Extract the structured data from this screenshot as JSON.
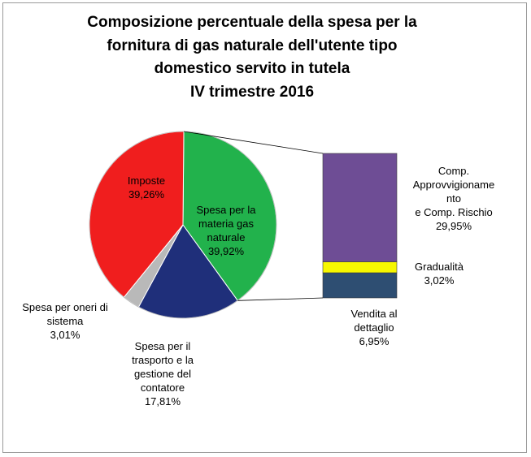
{
  "chart_data": {
    "type": "pie",
    "title": [
      "Composizione percentuale della spesa per la",
      "fornitura di gas naturale dell'utente tipo",
      "domestico servito in tutela",
      "IV trimestre 2016"
    ],
    "pie": {
      "slices": [
        {
          "key": "materia",
          "label_lines": [
            "Spesa per la",
            "materia gas",
            "naturale",
            "39,92%"
          ],
          "value": 39.92,
          "color": "#22b24c"
        },
        {
          "key": "trasporto",
          "label_lines": [
            "Spesa per il",
            "trasporto e la",
            "gestione del",
            "contatore",
            "17,81%"
          ],
          "value": 17.81,
          "color": "#1f2f7a"
        },
        {
          "key": "oneri",
          "label_lines": [
            "Spesa per oneri di",
            "sistema",
            "3,01%"
          ],
          "value": 3.01,
          "color": "#b9b9b9"
        },
        {
          "key": "imposte",
          "label_lines": [
            "Imposte",
            "39,26%"
          ],
          "value": 39.26,
          "color": "#f01e1e"
        }
      ]
    },
    "breakdown_of": "materia",
    "breakdown": [
      {
        "key": "vendita",
        "label_lines": [
          "Vendita al",
          "dettaglio",
          "6,95%"
        ],
        "value": 6.95,
        "color": "#2e4e72"
      },
      {
        "key": "gradualita",
        "label_lines": [
          "Gradualità",
          "3,02%"
        ],
        "value": 3.02,
        "color": "#f7f700"
      },
      {
        "key": "approv",
        "label_lines": [
          "Comp.",
          "Approvvigioname",
          "nto",
          "e  Comp. Rischio",
          "29,95%"
        ],
        "value": 29.95,
        "color": "#6e4d95"
      }
    ]
  }
}
